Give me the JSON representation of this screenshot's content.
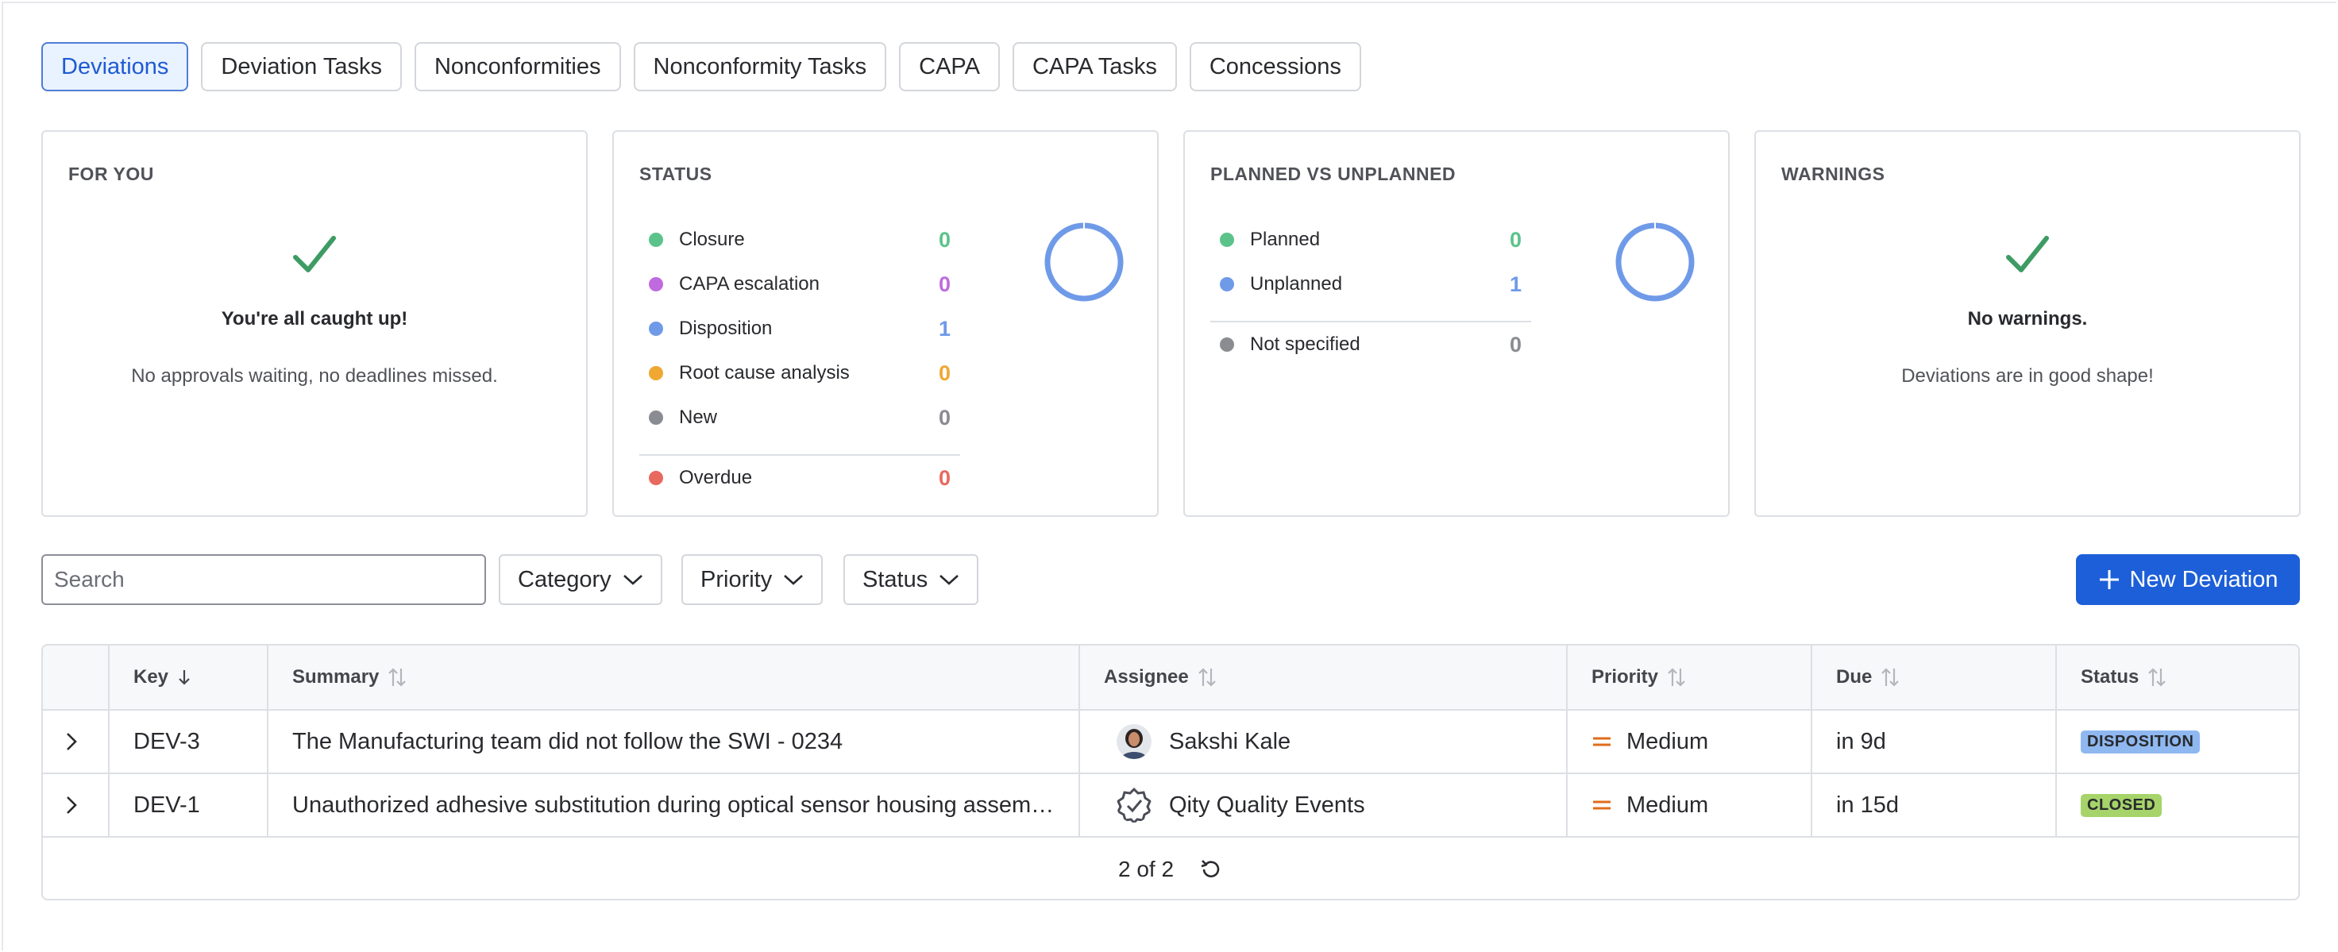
{
  "tabs": [
    {
      "label": "Deviations",
      "active": true
    },
    {
      "label": "Deviation Tasks"
    },
    {
      "label": "Nonconformities"
    },
    {
      "label": "Nonconformity Tasks"
    },
    {
      "label": "CAPA"
    },
    {
      "label": "CAPA Tasks"
    },
    {
      "label": "Concessions"
    }
  ],
  "for_you": {
    "title": "FOR YOU",
    "heading": "You're all caught up!",
    "message": "No approvals waiting, no deadlines missed.",
    "icon": "check-icon"
  },
  "status": {
    "title": "STATUS",
    "items": [
      {
        "label": "Closure",
        "value": "0",
        "color": "#5bc38a"
      },
      {
        "label": "CAPA escalation",
        "value": "0",
        "color": "#c06ae0"
      },
      {
        "label": "Disposition",
        "value": "1",
        "color": "#6f9ae8"
      },
      {
        "label": "Root cause analysis",
        "value": "0",
        "color": "#f0a832"
      },
      {
        "label": "New",
        "value": "0",
        "color": "#8a8c91"
      }
    ],
    "overdue": {
      "label": "Overdue",
      "value": "0",
      "color": "#e8695f"
    }
  },
  "planned": {
    "title": "PLANNED VS UNPLANNED",
    "items": [
      {
        "label": "Planned",
        "value": "0",
        "color": "#5bc38a"
      },
      {
        "label": "Unplanned",
        "value": "1",
        "color": "#6f9ae8"
      }
    ],
    "not_specified": {
      "label": "Not specified",
      "value": "0",
      "color": "#8a8c91"
    }
  },
  "warnings": {
    "title": "WARNINGS",
    "heading": "No warnings.",
    "message": "Deviations are in good shape!",
    "icon": "check-icon"
  },
  "toolbar": {
    "search_placeholder": "Search",
    "filters": [
      "Category",
      "Priority",
      "Status"
    ],
    "new_button": "New Deviation"
  },
  "table": {
    "columns": {
      "key": "Key",
      "summary": "Summary",
      "assignee": "Assignee",
      "priority": "Priority",
      "due": "Due",
      "status": "Status"
    },
    "rows": [
      {
        "key": "DEV-3",
        "summary": "The Manufacturing team did not follow the SWI - 0234",
        "assignee": "Sakshi Kale",
        "priority": "Medium",
        "due": "in 9d",
        "status": "DISPOSITION",
        "status_color": "#8fb8f0"
      },
      {
        "key": "DEV-1",
        "summary": "Unauthorized adhesive substitution during optical sensor housing assem…",
        "assignee": "Qity Quality Events",
        "priority": "Medium",
        "due": "in 15d",
        "status": "CLOSED",
        "status_color": "#a6d46a"
      }
    ],
    "pagination": "2 of 2"
  }
}
